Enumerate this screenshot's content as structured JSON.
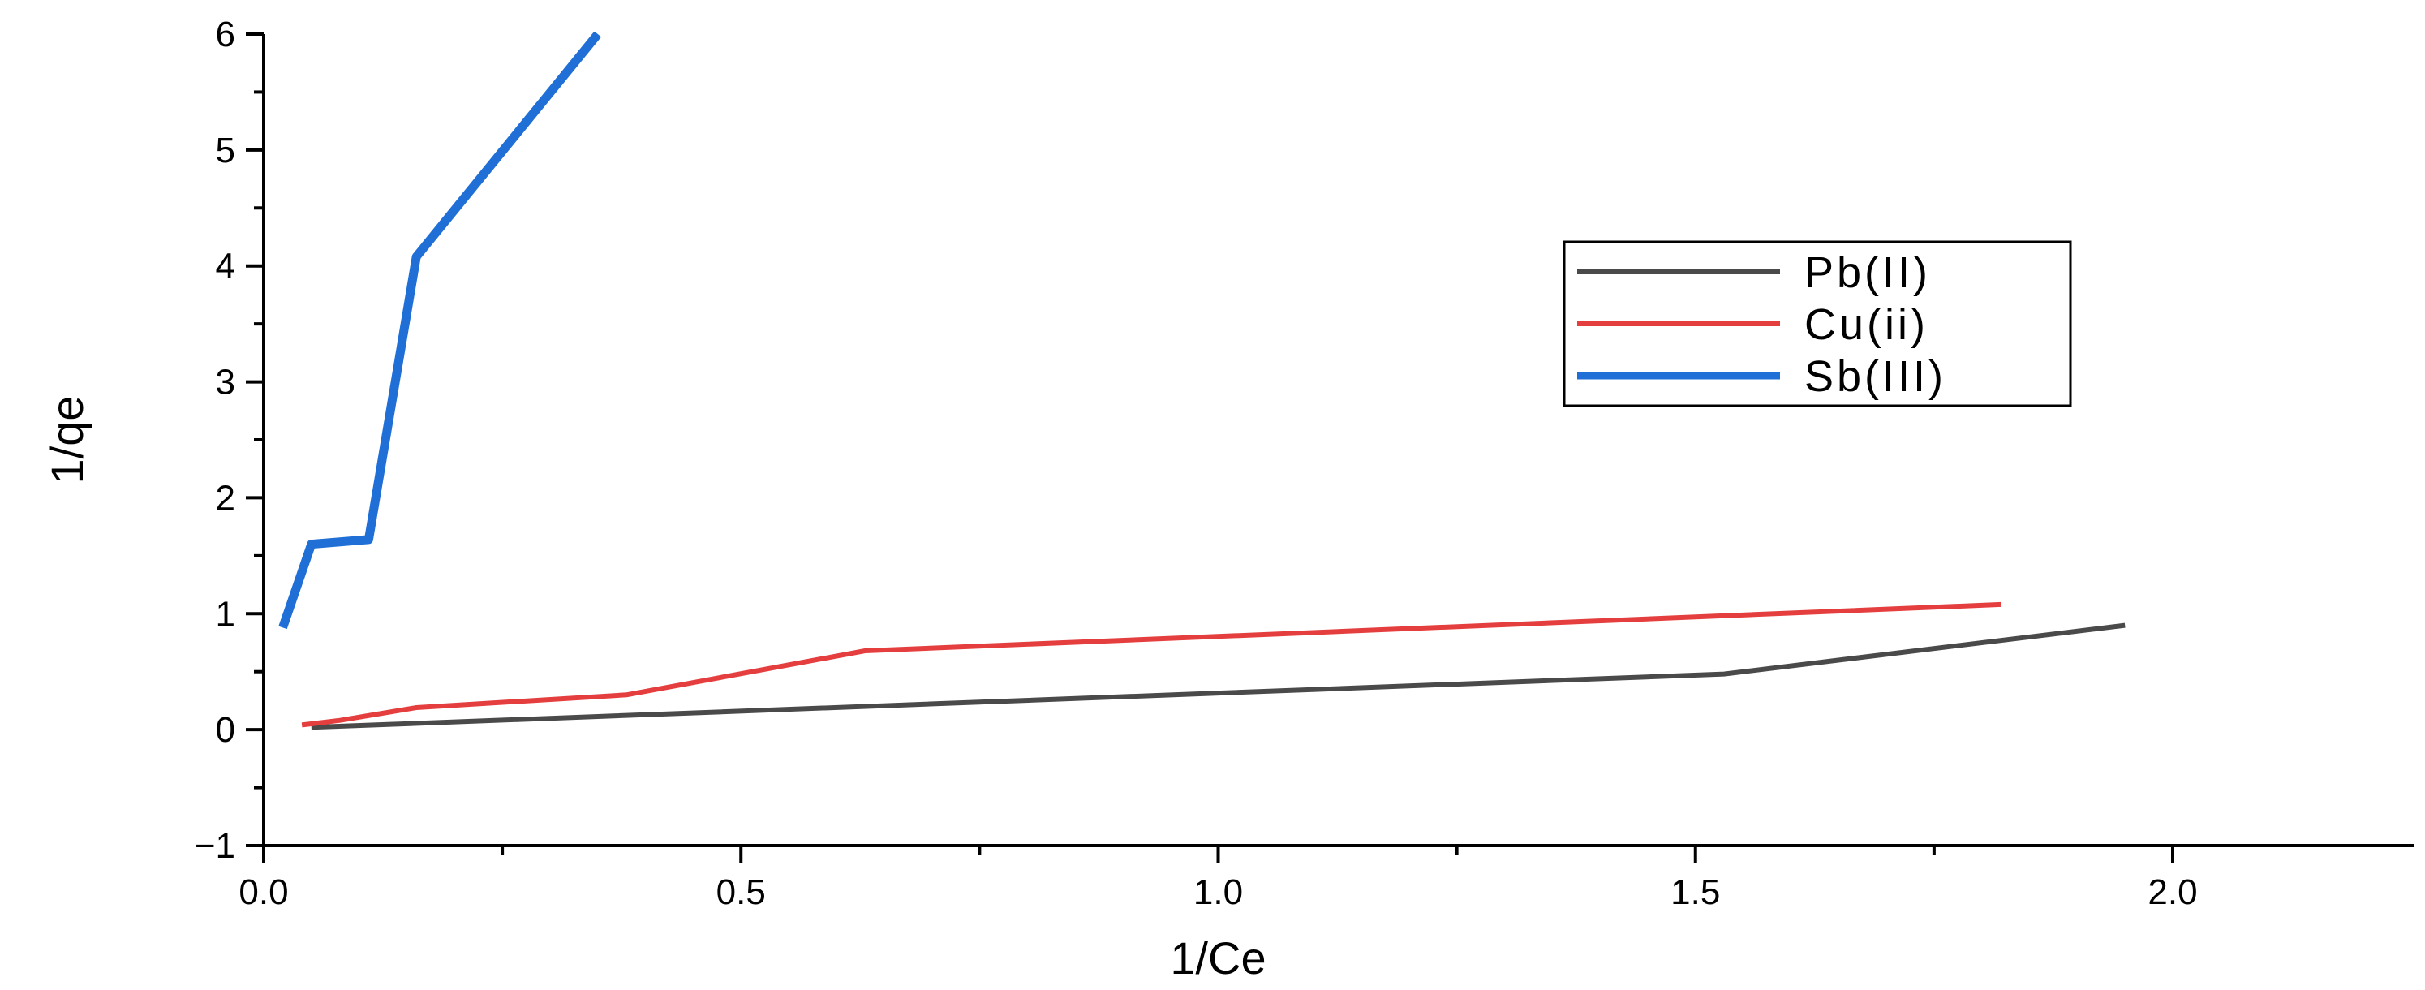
{
  "chart_data": {
    "type": "line",
    "xlabel": "1/Ce",
    "ylabel": "1/qe",
    "xlim": [
      0.0,
      2.25
    ],
    "ylim": [
      -1,
      6
    ],
    "x_ticks": [
      0.0,
      0.5,
      1.0,
      1.5,
      2.0
    ],
    "x_tick_labels": [
      "0.0",
      "0.5",
      "1.0",
      "1.5",
      "2.0"
    ],
    "y_ticks": [
      -1,
      0,
      1,
      2,
      3,
      4,
      5,
      6
    ],
    "y_tick_labels": [
      "−1",
      "0",
      "1",
      "2",
      "3",
      "4",
      "5",
      "6"
    ],
    "grid": false,
    "legend_position": "top-right",
    "series": [
      {
        "name": "Pb(II)",
        "color": "#4a4a4a",
        "points": [
          [
            0.05,
            0.02
          ],
          [
            1.53,
            0.48
          ],
          [
            1.95,
            0.9
          ]
        ]
      },
      {
        "name": "Cu(ii)",
        "color": "#e53e3e",
        "points": [
          [
            0.04,
            0.04
          ],
          [
            0.08,
            0.08
          ],
          [
            0.16,
            0.19
          ],
          [
            0.38,
            0.3
          ],
          [
            0.63,
            0.68
          ],
          [
            1.82,
            1.08
          ]
        ]
      },
      {
        "name": "Sb(III)",
        "color": "#1f6fd6",
        "points": [
          [
            0.02,
            0.88
          ],
          [
            0.05,
            1.6
          ],
          [
            0.11,
            1.64
          ],
          [
            0.16,
            4.08
          ],
          [
            0.35,
            6.0
          ]
        ]
      }
    ]
  }
}
